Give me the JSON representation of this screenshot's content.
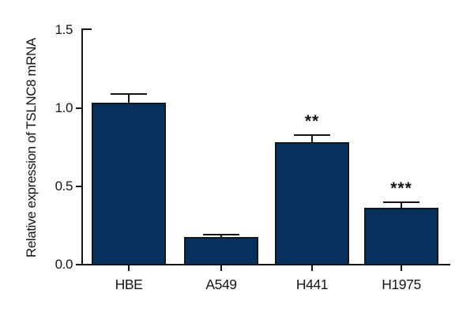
{
  "figure": {
    "background": "#ffffff"
  },
  "chart_data": {
    "type": "bar",
    "title": "",
    "ylabel": "Relative expression of TSLNC8 mRNA",
    "xlabel": "",
    "categories": [
      "HBE",
      "A549",
      "H441",
      "H1975"
    ],
    "values": [
      1.03,
      0.17,
      0.78,
      0.36
    ],
    "errors": [
      0.06,
      0.02,
      0.05,
      0.04
    ],
    "significance": [
      "",
      "",
      "**",
      "***"
    ],
    "yticks": [
      0.0,
      0.5,
      1.0,
      1.5
    ],
    "ylim": [
      0,
      1.5
    ],
    "grid": false,
    "legend": null,
    "bar_color": "#08305c",
    "bar_border_color": "#10181f",
    "axis_color": "#151515",
    "text_color": "#151515"
  }
}
